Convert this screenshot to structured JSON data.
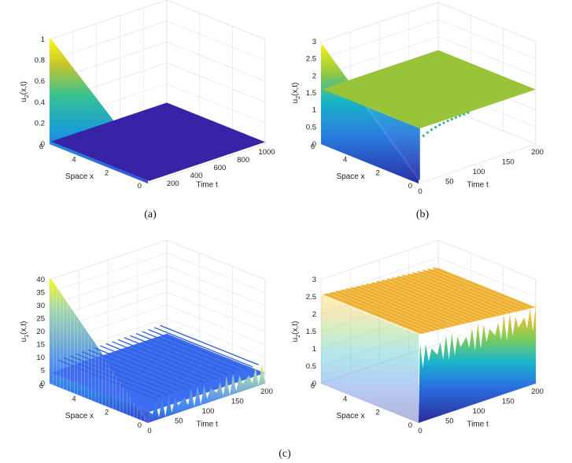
{
  "captions": {
    "a": "(a)",
    "b": "(b)",
    "c": "(c)"
  },
  "chart_data": [
    {
      "panel": "a",
      "type": "surface",
      "zlabel_main": "u",
      "zlabel_sub": "2",
      "zlabel_tail": "(x,t)",
      "xlabel": "Time t",
      "ylabel": "Space x",
      "t_ticks": [
        "200",
        "400",
        "600",
        "800",
        "1000"
      ],
      "t_tick_values": [
        200,
        400,
        600,
        800,
        1000
      ],
      "x_ticks": [
        "0",
        "2",
        "4",
        "6"
      ],
      "x_tick_values": [
        0,
        2,
        4,
        6
      ],
      "z_ticks": [
        "0",
        "0.2",
        "0.4",
        "0.6",
        "0.8",
        "1"
      ],
      "z_tick_values": [
        0,
        0.2,
        0.4,
        0.6,
        0.8,
        1
      ],
      "t_range": [
        0,
        1000
      ],
      "x_range": [
        0,
        6
      ],
      "z_range": [
        0,
        1
      ],
      "initial_profile_z": [
        1,
        0.15
      ],
      "steady_state_z": 0.02,
      "oscillation_amplitude": 0,
      "colormap": "parula"
    },
    {
      "panel": "b",
      "type": "surface",
      "zlabel_main": "u",
      "zlabel_sub": "2",
      "zlabel_tail": "(x,t)",
      "xlabel": "Time t",
      "ylabel": "Space x",
      "t_ticks": [
        "0",
        "50",
        "100",
        "150",
        "200"
      ],
      "t_tick_values": [
        0,
        50,
        100,
        150,
        200
      ],
      "x_ticks": [
        "0",
        "2",
        "4",
        "6"
      ],
      "x_tick_values": [
        0,
        2,
        4,
        6
      ],
      "z_ticks": [
        "0",
        "0.5",
        "1",
        "1.5",
        "2",
        "2.5",
        "3"
      ],
      "z_tick_values": [
        0,
        0.5,
        1,
        1.5,
        2,
        2.5,
        3
      ],
      "t_range": [
        0,
        200
      ],
      "x_range": [
        0,
        6
      ],
      "z_range": [
        0,
        3
      ],
      "initial_profile_z": [
        2.9,
        0.1
      ],
      "steady_state_z": 1.6,
      "oscillation_amplitude": 0.12,
      "colormap": "parula"
    },
    {
      "panel": "c1",
      "type": "surface",
      "zlabel_main": "u",
      "zlabel_sub": "1",
      "zlabel_tail": "(x,t)",
      "xlabel": "Time t",
      "ylabel": "Space x",
      "t_ticks": [
        "0",
        "50",
        "100",
        "150",
        "200"
      ],
      "t_tick_values": [
        0,
        50,
        100,
        150,
        200
      ],
      "x_ticks": [
        "0",
        "2",
        "4",
        "6"
      ],
      "x_tick_values": [
        0,
        2,
        4,
        6
      ],
      "z_ticks": [
        "0",
        "5",
        "10",
        "15",
        "20",
        "25",
        "30",
        "35",
        "40"
      ],
      "z_tick_values": [
        0,
        5,
        10,
        15,
        20,
        25,
        30,
        35,
        40
      ],
      "t_range": [
        0,
        200
      ],
      "x_range": [
        0,
        6
      ],
      "z_range": [
        0,
        40
      ],
      "initial_profile_z": [
        40,
        0
      ],
      "steady_state_z": 4,
      "oscillation_amplitude": 4,
      "colormap": "parula"
    },
    {
      "panel": "c2",
      "type": "surface",
      "zlabel_main": "u",
      "zlabel_sub": "2",
      "zlabel_tail": "(x,t)",
      "xlabel": "Time t",
      "ylabel": "Space x",
      "t_ticks": [
        "0",
        "50",
        "100",
        "150",
        "200"
      ],
      "t_tick_values": [
        0,
        50,
        100,
        150,
        200
      ],
      "x_ticks": [
        "0",
        "2",
        "4",
        "6"
      ],
      "x_tick_values": [
        0,
        2,
        4,
        6
      ],
      "z_ticks": [
        "0",
        "0.5",
        "1",
        "1.5",
        "2",
        "2.5",
        "3"
      ],
      "z_tick_values": [
        0,
        0.5,
        1,
        1.5,
        2,
        2.5,
        3
      ],
      "t_range": [
        0,
        200
      ],
      "x_range": [
        0,
        6
      ],
      "z_range": [
        0,
        3
      ],
      "initial_profile_z": [
        0,
        0
      ],
      "steady_state_z": 1.6,
      "oscillation_amplitude": 0.55,
      "colormap": "parula"
    }
  ]
}
